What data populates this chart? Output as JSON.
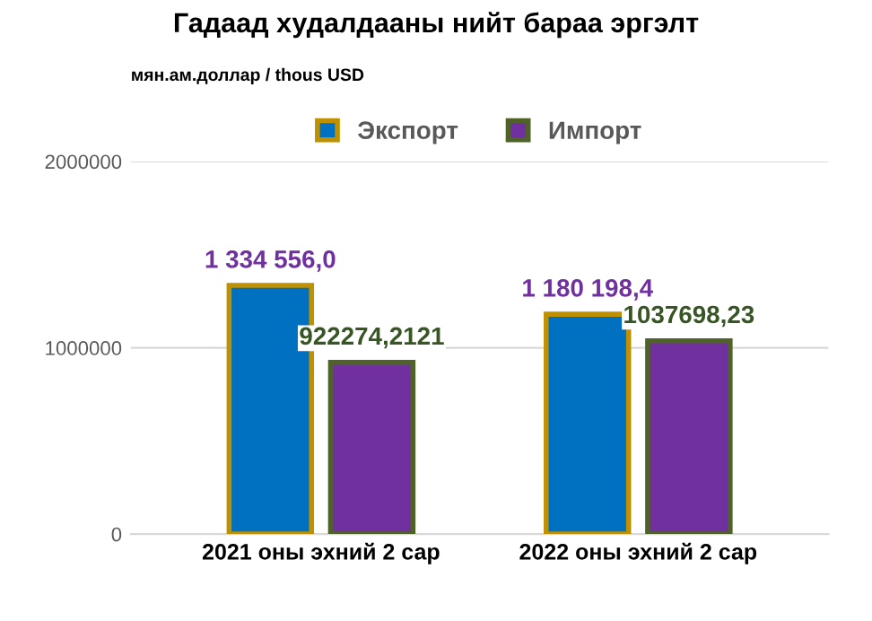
{
  "chart_data": {
    "type": "bar",
    "title": "Гадаад худалдааны нийт бараа эргэлт",
    "annotations": [
      "мян.ам.доллар / thous USD"
    ],
    "categories": [
      "2021 оны эхний 2 сар",
      "2022 оны эхний 2 сар"
    ],
    "series": [
      {
        "name": "Экспорт",
        "color": "#0070c0",
        "values": [
          1334556.0,
          1180198.4
        ],
        "value_labels": [
          "1 334 556,0",
          "1 180 198,4"
        ]
      },
      {
        "name": "Импорт",
        "color": "#7030a0",
        "values": [
          922274.2121,
          1037698.23
        ],
        "value_labels": [
          "922274,2121",
          "1037698,23"
        ]
      }
    ],
    "ylim": [
      0,
      2000000
    ],
    "yticks": [
      0,
      1000000,
      2000000
    ],
    "grid": "y",
    "legend": "top"
  }
}
